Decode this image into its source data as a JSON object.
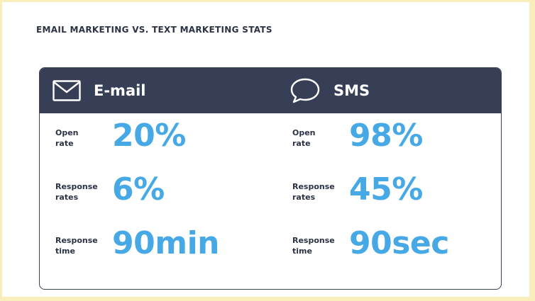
{
  "title": "EMAIL MARKETING VS. TEXT MARKETING STATS",
  "colors": {
    "header_bg": "#363f56",
    "value_blue": "#46a9e5",
    "label_dark": "#2b3245",
    "outer_bg": "#f7eebb"
  },
  "columns": [
    {
      "icon": "envelope-icon",
      "label": "E-mail",
      "stats": [
        {
          "label_line1": "Open",
          "label_line2": "rate",
          "value": "20%"
        },
        {
          "label_line1": "Response",
          "label_line2": "rates",
          "value": "6%"
        },
        {
          "label_line1": "Response",
          "label_line2": "time",
          "value": "90min"
        }
      ]
    },
    {
      "icon": "speech-bubble-icon",
      "label": "SMS",
      "stats": [
        {
          "label_line1": "Open",
          "label_line2": "rate",
          "value": "98%"
        },
        {
          "label_line1": "Response",
          "label_line2": "rates",
          "value": "45%"
        },
        {
          "label_line1": "Response",
          "label_line2": "time",
          "value": "90sec"
        }
      ]
    }
  ]
}
